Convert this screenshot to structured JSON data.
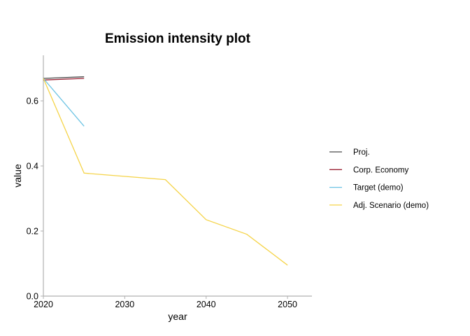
{
  "chart_data": {
    "type": "line",
    "title": "Emission intensity plot",
    "xlabel": "year",
    "ylabel": "value",
    "xlim": [
      2020,
      2053
    ],
    "ylim": [
      0,
      0.74
    ],
    "xticks": [
      2020,
      2030,
      2040,
      2050
    ],
    "yticks": [
      0.0,
      0.2,
      0.4,
      0.6
    ],
    "ytick_labels": [
      "0.0",
      "0.2",
      "0.4",
      "0.6"
    ],
    "grid": false,
    "legend_position": "right",
    "series": [
      {
        "name": "Proj.",
        "color": "#4a4a4a",
        "x": [
          2020,
          2025
        ],
        "y": [
          0.669,
          0.674
        ]
      },
      {
        "name": "Corp. Economy",
        "color": "#9b2335",
        "x": [
          2020,
          2025
        ],
        "y": [
          0.664,
          0.669
        ]
      },
      {
        "name": "Target (demo)",
        "color": "#6ec4e4",
        "x": [
          2020,
          2025
        ],
        "y": [
          0.669,
          0.522
        ]
      },
      {
        "name": "Adj. Scenario (demo)",
        "color": "#f5d44a",
        "x": [
          2020,
          2025,
          2035,
          2040,
          2045,
          2050
        ],
        "y": [
          0.669,
          0.378,
          0.358,
          0.235,
          0.19,
          0.095
        ]
      }
    ]
  }
}
